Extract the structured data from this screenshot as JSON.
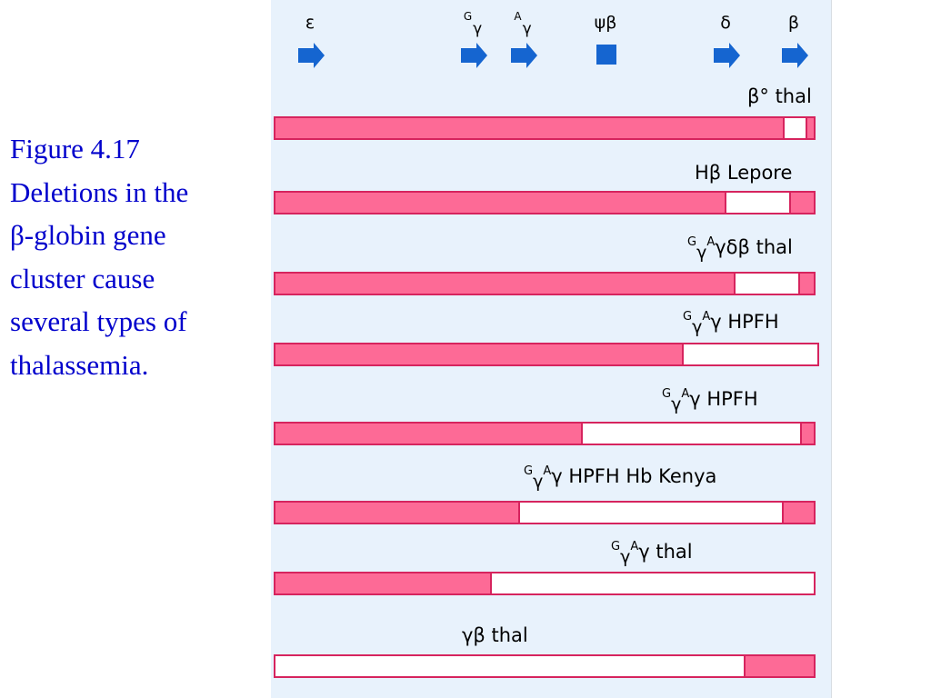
{
  "caption": {
    "lines": [
      "Figure 4.17",
      "Deletions in the",
      "β-globin gene",
      "cluster cause",
      "several types of",
      "thalassemia."
    ]
  },
  "genes": [
    {
      "id": "epsilon",
      "label": "ε",
      "marker": "arrow"
    },
    {
      "id": "G-gamma",
      "sup": "G",
      "label": "γ",
      "marker": "arrow"
    },
    {
      "id": "A-gamma",
      "sup": "A",
      "label": "γ",
      "marker": "arrow"
    },
    {
      "id": "psi-beta",
      "label": "ψβ",
      "marker": "square"
    },
    {
      "id": "delta",
      "label": "δ",
      "marker": "arrow"
    },
    {
      "id": "beta",
      "label": "β",
      "marker": "arrow"
    }
  ],
  "rows": [
    {
      "id": "beta0-thal",
      "label": "β° thal"
    },
    {
      "id": "hb-lepore",
      "label": "Hβ Lepore"
    },
    {
      "id": "ggaydb-thal",
      "prefix": true,
      "text": "γδβ thal"
    },
    {
      "id": "ggay-hpfh-1",
      "prefix": true,
      "text": "γ HPFH"
    },
    {
      "id": "ggay-hpfh-2",
      "prefix": true,
      "text": "γ HPFH"
    },
    {
      "id": "ggay-hpfh-kenya",
      "prefix": true,
      "text": "γ HPFH Hb Kenya"
    },
    {
      "id": "ggay-thal",
      "prefix": true,
      "text": "γ thal"
    },
    {
      "id": "gb-thal",
      "label": "γβ thal"
    }
  ],
  "prefix": {
    "sup1": "G",
    "sub1": "γ",
    "sup2": "A"
  },
  "colors": {
    "present_dna": "#fd6a96",
    "deleted_dna": "#ffffff",
    "gene_marker": "#1565d0",
    "caption_text": "#0000cc"
  }
}
